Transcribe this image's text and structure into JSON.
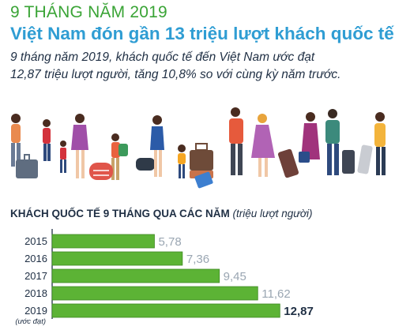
{
  "header": {
    "supertitle": "9 THÁNG NĂM 2019",
    "title": "Việt Nam đón gần 13 triệu lượt khách quốc tế",
    "description_line1": "9 tháng năm 2019, khách quốc tế đến Việt Nam ước đạt",
    "description_line2": "12,87 triệu lượt người, tăng 10,8% so với cùng kỳ năm trước."
  },
  "illustration": {
    "icon": "travelers-with-luggage-icon"
  },
  "chart_data": {
    "type": "bar",
    "orientation": "horizontal",
    "title": "KHÁCH QUỐC TẾ 9 THÁNG QUA CÁC NĂM",
    "unit": "(triệu lượt người)",
    "categories": [
      "2015",
      "2016",
      "2017",
      "2018",
      "2019"
    ],
    "category_notes": [
      "",
      "",
      "",
      "",
      "(ước đạt)"
    ],
    "values": [
      5.78,
      7.36,
      9.45,
      11.62,
      12.87
    ],
    "value_labels": [
      "5,78",
      "7,36",
      "9,45",
      "11,62",
      "12,87"
    ],
    "highlight_last": true,
    "bar_color": "#5cb335",
    "bar_border": "#3f8a23",
    "label_color": "#9aa6b2",
    "highlight_label_color": "#1f2f44",
    "axis_color": "#1f2f44",
    "xlim": [
      0,
      13.5
    ]
  }
}
